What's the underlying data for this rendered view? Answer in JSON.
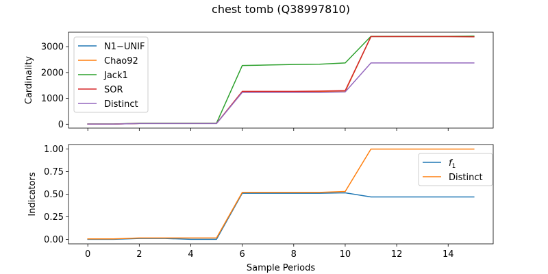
{
  "figure": {
    "title": "chest tomb (Q38997810)"
  },
  "chart_data": [
    {
      "type": "line",
      "xlabel": "",
      "ylabel": "Cardinality",
      "xlim": [
        -0.75,
        15.75
      ],
      "ylim": [
        -150,
        3560
      ],
      "x_ticks": [
        0,
        2,
        4,
        6,
        8,
        10,
        12,
        14
      ],
      "x_tick_labels_visible": false,
      "y_ticks": [
        0,
        1000,
        2000,
        3000
      ],
      "y_tick_labels": [
        "0",
        "1000",
        "2000",
        "3000"
      ],
      "grid": false,
      "legend_position": "top-left",
      "x": [
        0,
        1,
        2,
        3,
        4,
        5,
        6,
        7,
        8,
        9,
        10,
        11,
        12,
        13,
        14,
        15
      ],
      "series": [
        {
          "name": "N1−UNIF",
          "color": "#1f77b4",
          "values": [
            5,
            5,
            30,
            30,
            30,
            30,
            1250,
            1250,
            1250,
            1250,
            1270,
            3390,
            3390,
            3390,
            3390,
            3390
          ]
        },
        {
          "name": "Chao92",
          "color": "#ff7f0e",
          "values": [
            5,
            5,
            30,
            30,
            30,
            30,
            1250,
            1250,
            1250,
            1250,
            1270,
            3390,
            3390,
            3390,
            3390,
            3390
          ]
        },
        {
          "name": "Jack1",
          "color": "#2ca02c",
          "values": [
            10,
            10,
            40,
            40,
            40,
            40,
            2270,
            2290,
            2310,
            2320,
            2370,
            3400,
            3400,
            3400,
            3400,
            3410
          ]
        },
        {
          "name": "SOR",
          "color": "#d62728",
          "values": [
            5,
            5,
            30,
            30,
            30,
            30,
            1270,
            1270,
            1270,
            1280,
            1300,
            3390,
            3390,
            3390,
            3390,
            3380
          ]
        },
        {
          "name": "Distinct",
          "color": "#9467bd",
          "values": [
            5,
            5,
            25,
            25,
            25,
            25,
            1230,
            1230,
            1230,
            1230,
            1250,
            2370,
            2370,
            2370,
            2370,
            2370
          ]
        }
      ]
    },
    {
      "type": "line",
      "xlabel": "Sample Periods",
      "ylabel": "Indicators",
      "xlim": [
        -0.75,
        15.75
      ],
      "ylim": [
        -0.05,
        1.05
      ],
      "x_ticks": [
        0,
        2,
        4,
        6,
        8,
        10,
        12,
        14
      ],
      "x_tick_labels": [
        "0",
        "2",
        "4",
        "6",
        "8",
        "10",
        "12",
        "14"
      ],
      "y_ticks": [
        0.0,
        0.25,
        0.5,
        0.75,
        1.0
      ],
      "y_tick_labels": [
        "0.00",
        "0.25",
        "0.50",
        "0.75",
        "1.00"
      ],
      "grid": false,
      "legend_position": "top-right",
      "x": [
        0,
        1,
        2,
        3,
        4,
        5,
        6,
        7,
        8,
        9,
        10,
        11,
        12,
        13,
        14,
        15
      ],
      "series": [
        {
          "name": "f1",
          "name_base": "f",
          "name_sub": "1",
          "color": "#1f77b4",
          "values": [
            0.0,
            0.0,
            0.01,
            0.01,
            0.0,
            0.0,
            0.51,
            0.51,
            0.51,
            0.51,
            0.515,
            0.47,
            0.47,
            0.47,
            0.47,
            0.47
          ]
        },
        {
          "name": "Distinct",
          "color": "#ff7f0e",
          "values": [
            0.005,
            0.005,
            0.015,
            0.015,
            0.015,
            0.015,
            0.52,
            0.52,
            0.52,
            0.52,
            0.53,
            1.0,
            1.0,
            1.0,
            1.0,
            1.0
          ]
        }
      ]
    }
  ]
}
